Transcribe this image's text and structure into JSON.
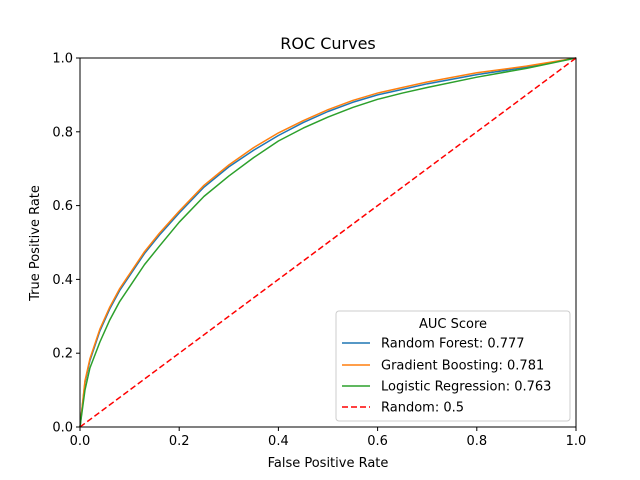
{
  "chart_data": {
    "type": "line",
    "title": "ROC Curves",
    "xlabel": "False Positive Rate",
    "ylabel": "True Positive Rate",
    "xlim": [
      0,
      1
    ],
    "ylim": [
      0,
      1
    ],
    "xticks": [
      "0.0",
      "0.2",
      "0.4",
      "0.6",
      "0.8",
      "1.0"
    ],
    "yticks": [
      "0.0",
      "0.2",
      "0.4",
      "0.6",
      "0.8",
      "1.0"
    ],
    "grid": false,
    "legend": {
      "title": "AUC Score",
      "placement": "bottom-right"
    },
    "series": [
      {
        "name": "Random Forest: 0.777",
        "color": "#1f77b4",
        "style": "solid",
        "x": [
          0,
          0.01,
          0.02,
          0.04,
          0.06,
          0.08,
          0.1,
          0.13,
          0.16,
          0.2,
          0.25,
          0.3,
          0.35,
          0.4,
          0.45,
          0.5,
          0.55,
          0.6,
          0.65,
          0.7,
          0.8,
          0.9,
          1.0
        ],
        "y": [
          0,
          0.12,
          0.18,
          0.26,
          0.32,
          0.37,
          0.41,
          0.47,
          0.52,
          0.58,
          0.65,
          0.705,
          0.75,
          0.79,
          0.825,
          0.855,
          0.88,
          0.9,
          0.915,
          0.93,
          0.955,
          0.975,
          1.0
        ]
      },
      {
        "name": "Gradient Boosting: 0.781",
        "color": "#ff7f0e",
        "style": "solid",
        "x": [
          0,
          0.01,
          0.02,
          0.04,
          0.06,
          0.08,
          0.1,
          0.13,
          0.16,
          0.2,
          0.25,
          0.3,
          0.35,
          0.4,
          0.45,
          0.5,
          0.55,
          0.6,
          0.65,
          0.7,
          0.8,
          0.9,
          1.0
        ],
        "y": [
          0,
          0.125,
          0.185,
          0.265,
          0.325,
          0.375,
          0.415,
          0.475,
          0.525,
          0.585,
          0.655,
          0.71,
          0.757,
          0.797,
          0.83,
          0.86,
          0.885,
          0.905,
          0.92,
          0.935,
          0.96,
          0.978,
          1.0
        ]
      },
      {
        "name": "Logistic Regression: 0.763",
        "color": "#2ca02c",
        "style": "solid",
        "x": [
          0,
          0.01,
          0.02,
          0.04,
          0.06,
          0.08,
          0.1,
          0.13,
          0.16,
          0.2,
          0.25,
          0.3,
          0.35,
          0.4,
          0.45,
          0.5,
          0.55,
          0.6,
          0.65,
          0.7,
          0.8,
          0.9,
          1.0
        ],
        "y": [
          0,
          0.1,
          0.16,
          0.23,
          0.29,
          0.34,
          0.38,
          0.44,
          0.49,
          0.555,
          0.625,
          0.68,
          0.73,
          0.775,
          0.81,
          0.84,
          0.866,
          0.888,
          0.905,
          0.92,
          0.948,
          0.972,
          1.0
        ]
      },
      {
        "name": "Random: 0.5",
        "color": "#ff0000",
        "style": "dashed",
        "x": [
          0,
          1
        ],
        "y": [
          0,
          1
        ]
      }
    ]
  }
}
